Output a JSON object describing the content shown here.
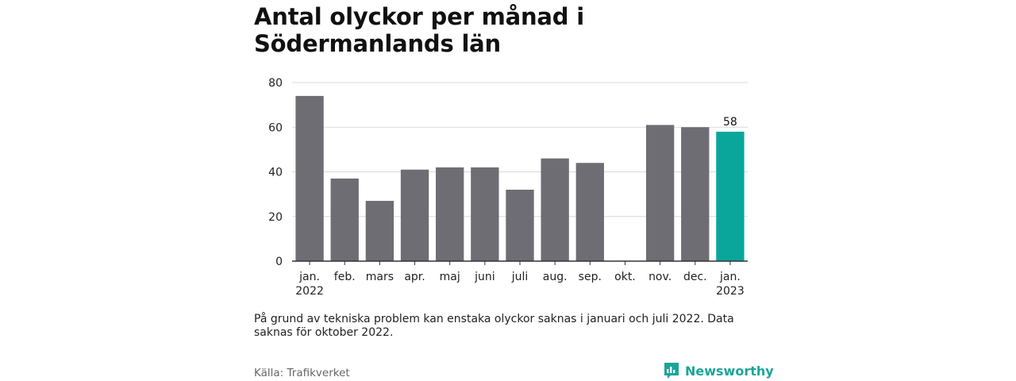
{
  "title": "Antal olyckor per månad i Södermanlands län",
  "note": "På grund av tekniska problem kan enstaka olyckor saknas i januari och juli 2022. Data saknas för oktober 2022.",
  "source": "Källa: Trafikverket",
  "brand": {
    "name": "Newsworthy",
    "icon": "newsworthy-logo-icon"
  },
  "colors": {
    "bar": "#6e6d73",
    "highlight": "#0aa69b",
    "grid": "#d9d9d9",
    "axis": "#333333"
  },
  "chart_data": {
    "type": "bar",
    "categories": [
      [
        "jan.",
        "2022"
      ],
      [
        "feb."
      ],
      [
        "mars"
      ],
      [
        "apr."
      ],
      [
        "maj"
      ],
      [
        "juni"
      ],
      [
        "juli"
      ],
      [
        "aug."
      ],
      [
        "sep."
      ],
      [
        "okt."
      ],
      [
        "nov."
      ],
      [
        "dec."
      ],
      [
        "jan.",
        "2023"
      ]
    ],
    "values": [
      74,
      37,
      27,
      41,
      42,
      42,
      32,
      46,
      44,
      null,
      61,
      60,
      58
    ],
    "highlight_index": 12,
    "data_labels": {
      "12": "58"
    },
    "ylim": [
      0,
      80
    ],
    "yticks": [
      0,
      20,
      40,
      60,
      80
    ],
    "grid": true,
    "xlabel": "",
    "ylabel": ""
  }
}
